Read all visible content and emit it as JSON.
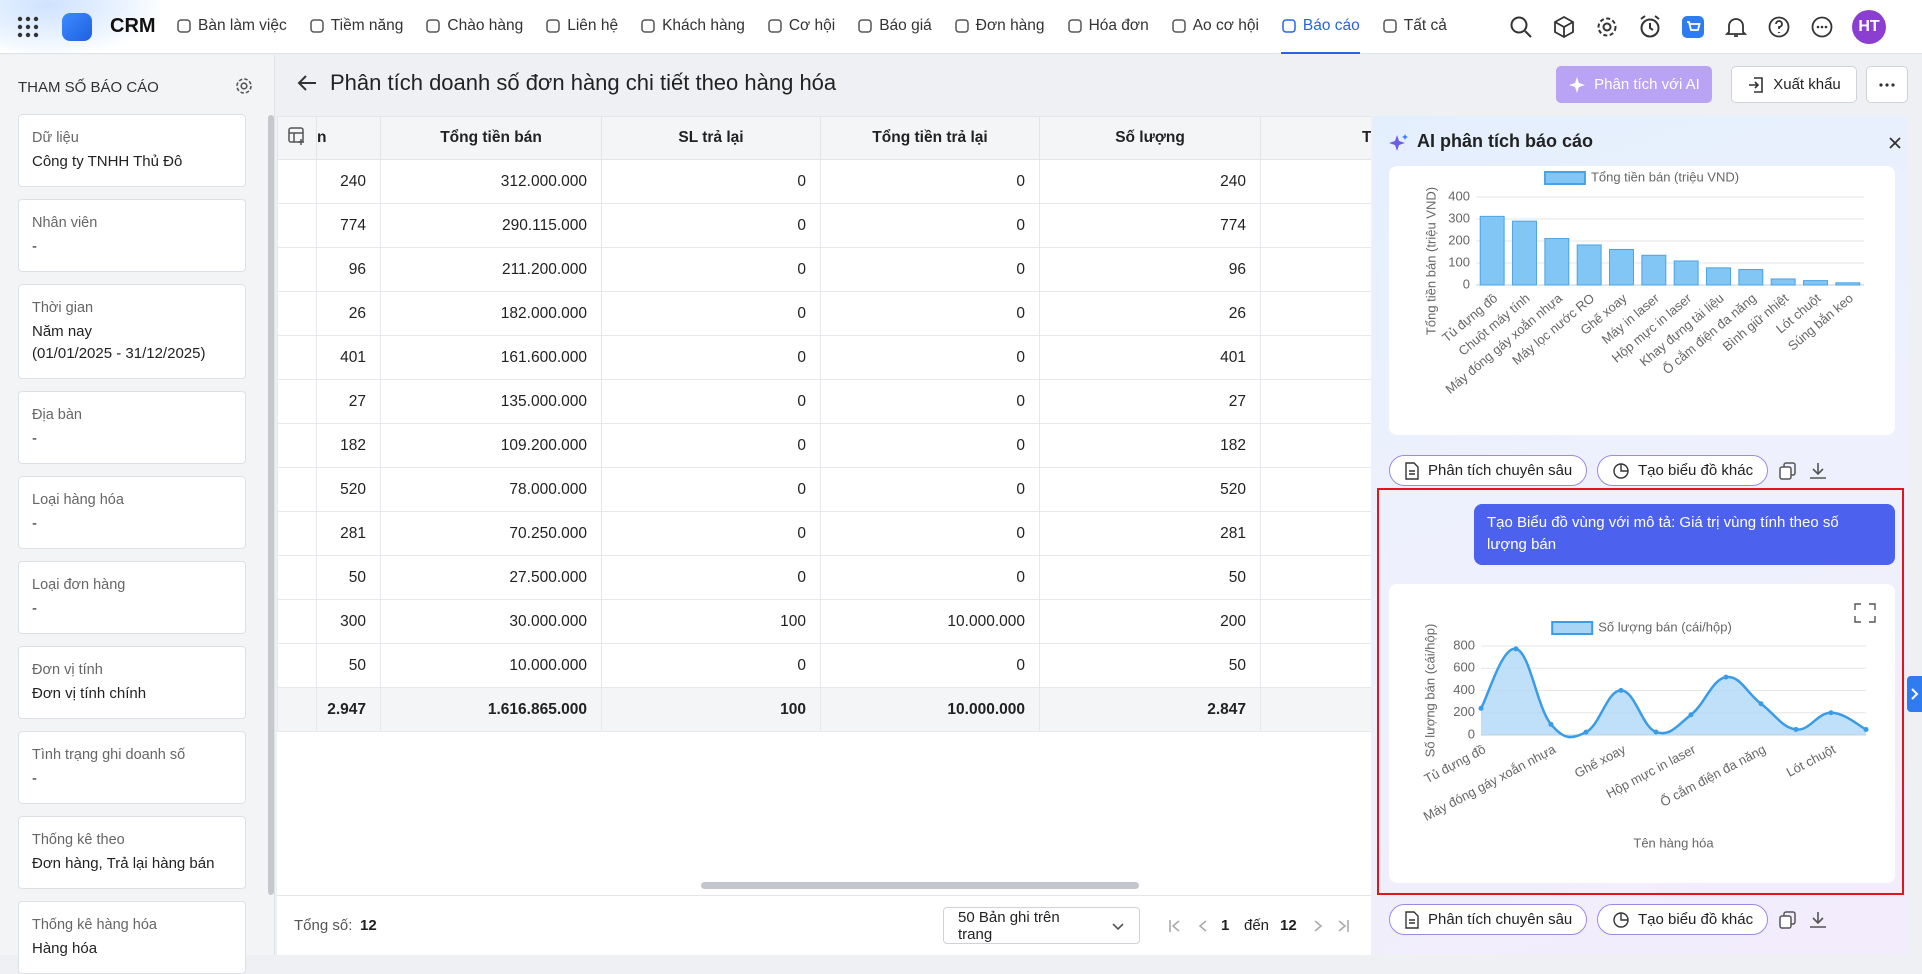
{
  "nav": {
    "logo": "CRM",
    "items": [
      {
        "label": "Bàn làm việc"
      },
      {
        "label": "Tiềm năng"
      },
      {
        "label": "Chào hàng"
      },
      {
        "label": "Liên hệ"
      },
      {
        "label": "Khách hàng"
      },
      {
        "label": "Cơ hội"
      },
      {
        "label": "Báo giá"
      },
      {
        "label": "Đơn hàng"
      },
      {
        "label": "Hóa đơn"
      },
      {
        "label": "Ao cơ hội"
      },
      {
        "label": "Báo cáo",
        "active": true
      },
      {
        "label": "Tất cả"
      }
    ],
    "avatar": "HT"
  },
  "sidebar": {
    "title": "THAM SỐ BÁO CÁO",
    "params": [
      {
        "label": "Dữ liệu",
        "value": "Công ty TNHH Thủ Đô"
      },
      {
        "label": "Nhân viên",
        "value": "-"
      },
      {
        "label": "Thời gian",
        "value": "Năm nay\n(01/01/2025 - 31/12/2025)"
      },
      {
        "label": "Địa bàn",
        "value": "-"
      },
      {
        "label": "Loại hàng hóa",
        "value": "-"
      },
      {
        "label": "Loại đơn hàng",
        "value": "-"
      },
      {
        "label": "Đơn vị tính",
        "value": "Đơn vị tính chính"
      },
      {
        "label": "Tình trạng ghi doanh số",
        "value": "-"
      },
      {
        "label": "Thống kê theo",
        "value": "Đơn hàng, Trả lại hàng bán"
      },
      {
        "label": "Thống kê hàng hóa",
        "value": "Hàng hóa"
      }
    ]
  },
  "header": {
    "title": "Phân tích doanh số đơn hàng chi tiết theo hàng hóa",
    "ai_button": "Phân tích với AI",
    "export_button": "Xuất khẩu"
  },
  "table": {
    "columns": [
      "n",
      "Tổng tiền bán",
      "SL trả lại",
      "Tổng tiền trả lại",
      "Số lượng",
      "Tỷ"
    ],
    "rows": [
      [
        "240",
        "312.000.000",
        "0",
        "0",
        "240"
      ],
      [
        "774",
        "290.115.000",
        "0",
        "0",
        "774"
      ],
      [
        "96",
        "211.200.000",
        "0",
        "0",
        "96"
      ],
      [
        "26",
        "182.000.000",
        "0",
        "0",
        "26"
      ],
      [
        "401",
        "161.600.000",
        "0",
        "0",
        "401"
      ],
      [
        "27",
        "135.000.000",
        "0",
        "0",
        "27"
      ],
      [
        "182",
        "109.200.000",
        "0",
        "0",
        "182"
      ],
      [
        "520",
        "78.000.000",
        "0",
        "0",
        "520"
      ],
      [
        "281",
        "70.250.000",
        "0",
        "0",
        "281"
      ],
      [
        "50",
        "27.500.000",
        "0",
        "0",
        "50"
      ],
      [
        "300",
        "30.000.000",
        "100",
        "10.000.000",
        "200"
      ],
      [
        "50",
        "10.000.000",
        "0",
        "0",
        "50"
      ]
    ],
    "total": [
      "2.947",
      "1.616.865.000",
      "100",
      "10.000.000",
      "2.847"
    ]
  },
  "footer": {
    "total_label": "Tổng số:",
    "total": "12",
    "page_size": "50 Bản ghi trên trang",
    "page_from": "1",
    "page_to_label": "đến",
    "page_to": "12"
  },
  "ai_panel": {
    "title": "AI phân tích báo cáo",
    "actions": [
      "Phân tích chuyên sâu",
      "Tạo biểu đồ khác"
    ],
    "message": "Tạo Biểu đồ vùng với mô tả: Giá trị vùng tính theo số lượng bán",
    "charts": [
      {
        "type": "bar",
        "y_label": "Tổng tiền bán (triệu VND)",
        "categories": [
          "Tủ đựng đồ",
          "Chuột máy tính",
          "Máy đóng gáy xoắn nhựa",
          "Máy lọc nước RO",
          "Ghế xoay",
          "Máy in laser",
          "Hộp mực in laser",
          "Khay đựng tài liệu",
          "Ổ cắm điện đa năng",
          "Bình giữ nhiệt",
          "Lót chuột",
          "Súng bắn keo"
        ],
        "series": [
          {
            "name": "Tổng tiền bán (triệu VND)",
            "color": "#82c6f5",
            "border_color": "#4aa3e6",
            "values": [
              312,
              290.115,
              211.2,
              182,
              161.6,
              135,
              109.2,
              78,
              70.25,
              27.5,
              20,
              10
            ]
          }
        ],
        "ylim": [
          0,
          400
        ],
        "yticks": [
          0,
          100,
          200,
          300,
          400
        ],
        "grid": true
      },
      {
        "type": "area",
        "y_label": "Số lượng bán (cái/hộp)",
        "x_label": "Tên hàng hóa",
        "categories": [
          "Tủ đựng đồ",
          null,
          "Máy đóng gáy xoắn nhựa",
          null,
          "Ghế xoay",
          null,
          "Hộp mực in laser",
          null,
          "Ổ cắm điện đa năng",
          null,
          "Lót chuột",
          null
        ],
        "series": [
          {
            "name": "Số lượng bán (cái/hộp)",
            "color": "#3a9be6",
            "fill_color": "#a9d5f5",
            "values": [
              240,
              774,
              96,
              26,
              401,
              27,
              182,
              520,
              281,
              50,
              200,
              50
            ]
          }
        ],
        "ylim": [
          0,
          800
        ],
        "yticks": [
          0,
          200,
          400,
          600,
          800
        ],
        "grid": true
      }
    ]
  }
}
